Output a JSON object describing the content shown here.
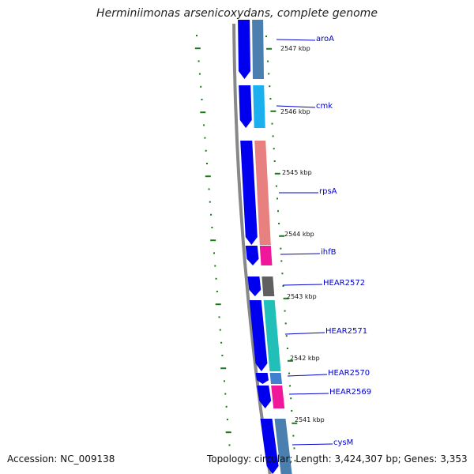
{
  "title": "Herminiimonas arsenicoxydans, complete genome",
  "footer": {
    "accession": "Accession: NC_009138",
    "summary": "Topology: circular; Length: 3,424,307 bp; Genes: 3,353"
  },
  "colors": {
    "backbone": "#888888",
    "strand": "#0000ee",
    "tick": "#1a7a1a",
    "label": "#0000cc"
  },
  "kbp_labels": [
    "2547 kbp",
    "2546 kbp",
    "2545 kbp",
    "2544 kbp",
    "2543 kbp",
    "2542 kbp",
    "2541 kbp"
  ],
  "genes": [
    {
      "name": "aroA",
      "color": "#4a7fb0"
    },
    {
      "name": "cmk",
      "color": "#1ab0f0"
    },
    {
      "name": "rpsA",
      "color": "#e88080"
    },
    {
      "name": "ihfB",
      "color": "#f0189a"
    },
    {
      "name": "HEAR2572",
      "color": "#606060"
    },
    {
      "name": "HEAR2571",
      "color": "#20c0b8"
    },
    {
      "name": "HEAR2570",
      "color": "#4080d0"
    },
    {
      "name": "HEAR2569",
      "color": "#f0189a"
    },
    {
      "name": "cysM",
      "color": "#4a7fb0"
    }
  ]
}
